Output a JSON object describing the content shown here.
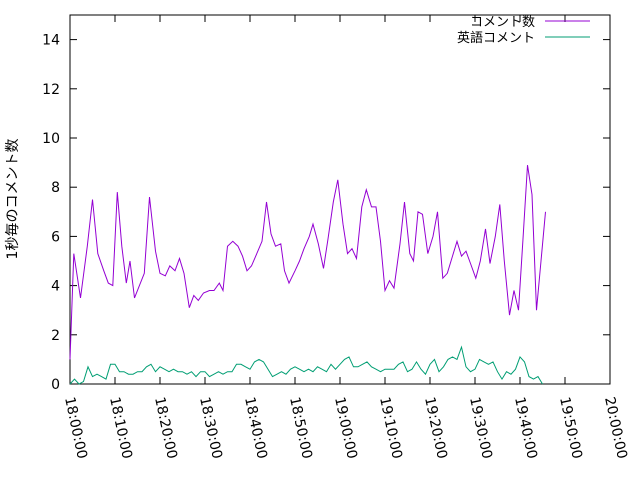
{
  "chart_data": {
    "type": "line",
    "ylabel": "1秒毎のコメント数",
    "xlabel": "",
    "title": "",
    "legend_position": "top-right",
    "grid": false,
    "x_unit": "time",
    "xlim": [
      "18:00:00",
      "20:00:00"
    ],
    "ylim": [
      0,
      15
    ],
    "x_ticks": [
      "18:00:00",
      "18:10:00",
      "18:20:00",
      "18:30:00",
      "18:40:00",
      "18:50:00",
      "19:00:00",
      "19:10:00",
      "19:20:00",
      "19:30:00",
      "19:40:00",
      "19:50:00",
      "20:00:00"
    ],
    "y_ticks": [
      0,
      2,
      4,
      6,
      8,
      10,
      12,
      14
    ],
    "series": [
      {
        "name": "コメント数",
        "color": "#9400d3",
        "points": [
          [
            "18:00:00",
            1.0
          ],
          [
            "18:00:50",
            5.3
          ],
          [
            "18:02:20",
            3.5
          ],
          [
            "18:03:50",
            5.6
          ],
          [
            "18:05:00",
            7.5
          ],
          [
            "18:06:10",
            5.3
          ],
          [
            "18:07:30",
            4.6
          ],
          [
            "18:08:30",
            4.1
          ],
          [
            "18:09:30",
            4.0
          ],
          [
            "18:10:30",
            7.8
          ],
          [
            "18:11:30",
            5.6
          ],
          [
            "18:12:30",
            4.1
          ],
          [
            "18:13:20",
            5.0
          ],
          [
            "18:14:20",
            3.5
          ],
          [
            "18:16:30",
            4.5
          ],
          [
            "18:17:40",
            7.6
          ],
          [
            "18:19:00",
            5.4
          ],
          [
            "18:20:00",
            4.5
          ],
          [
            "18:21:10",
            4.4
          ],
          [
            "18:22:10",
            4.8
          ],
          [
            "18:23:20",
            4.6
          ],
          [
            "18:24:20",
            5.1
          ],
          [
            "18:25:20",
            4.5
          ],
          [
            "18:26:30",
            3.1
          ],
          [
            "18:27:30",
            3.6
          ],
          [
            "18:28:30",
            3.4
          ],
          [
            "18:29:40",
            3.7
          ],
          [
            "18:31:00",
            3.8
          ],
          [
            "18:32:00",
            3.8
          ],
          [
            "18:33:10",
            4.1
          ],
          [
            "18:34:00",
            3.8
          ],
          [
            "18:35:00",
            5.6
          ],
          [
            "18:36:10",
            5.8
          ],
          [
            "18:37:20",
            5.6
          ],
          [
            "18:38:20",
            5.2
          ],
          [
            "18:39:20",
            4.6
          ],
          [
            "18:40:20",
            4.8
          ],
          [
            "18:41:30",
            5.3
          ],
          [
            "18:42:40",
            5.8
          ],
          [
            "18:43:40",
            7.4
          ],
          [
            "18:44:40",
            6.1
          ],
          [
            "18:45:40",
            5.6
          ],
          [
            "18:46:50",
            5.7
          ],
          [
            "18:47:40",
            4.6
          ],
          [
            "18:48:40",
            4.1
          ],
          [
            "18:50:00",
            4.6
          ],
          [
            "18:51:00",
            5.0
          ],
          [
            "18:52:00",
            5.5
          ],
          [
            "18:53:10",
            6.0
          ],
          [
            "18:54:00",
            6.5
          ],
          [
            "18:55:10",
            5.7
          ],
          [
            "18:56:20",
            4.7
          ],
          [
            "18:57:20",
            5.9
          ],
          [
            "18:58:30",
            7.4
          ],
          [
            "18:59:30",
            8.3
          ],
          [
            "19:00:40",
            6.5
          ],
          [
            "19:01:40",
            5.3
          ],
          [
            "19:02:40",
            5.5
          ],
          [
            "19:03:40",
            5.1
          ],
          [
            "19:04:50",
            7.2
          ],
          [
            "19:05:50",
            7.9
          ],
          [
            "19:07:00",
            7.2
          ],
          [
            "19:08:00",
            7.2
          ],
          [
            "19:09:00",
            5.8
          ],
          [
            "19:10:00",
            3.8
          ],
          [
            "19:11:00",
            4.2
          ],
          [
            "19:12:00",
            3.9
          ],
          [
            "19:13:20",
            5.7
          ],
          [
            "19:14:20",
            7.4
          ],
          [
            "19:15:30",
            5.3
          ],
          [
            "19:16:20",
            5.0
          ],
          [
            "19:17:20",
            7.0
          ],
          [
            "19:18:20",
            6.9
          ],
          [
            "19:19:30",
            5.3
          ],
          [
            "19:20:40",
            6.0
          ],
          [
            "19:21:40",
            7.0
          ],
          [
            "19:22:50",
            4.3
          ],
          [
            "19:23:50",
            4.5
          ],
          [
            "19:25:00",
            5.2
          ],
          [
            "19:26:00",
            5.8
          ],
          [
            "19:27:00",
            5.2
          ],
          [
            "19:28:00",
            5.4
          ],
          [
            "19:29:00",
            4.9
          ],
          [
            "19:30:10",
            4.3
          ],
          [
            "19:31:10",
            5.0
          ],
          [
            "19:32:20",
            6.3
          ],
          [
            "19:33:20",
            4.9
          ],
          [
            "19:34:30",
            6.0
          ],
          [
            "19:35:30",
            7.3
          ],
          [
            "19:36:30",
            5.0
          ],
          [
            "19:37:40",
            2.8
          ],
          [
            "19:38:40",
            3.8
          ],
          [
            "19:39:40",
            3.0
          ],
          [
            "19:40:40",
            5.9
          ],
          [
            "19:41:40",
            8.9
          ],
          [
            "19:42:40",
            7.7
          ],
          [
            "19:43:40",
            3.0
          ],
          [
            "19:44:40",
            5.0
          ],
          [
            "19:45:40",
            7.0
          ]
        ]
      },
      {
        "name": "英語コメント",
        "color": "#009e73",
        "points": [
          [
            "18:00:00",
            0.0
          ],
          [
            "18:01:00",
            0.2
          ],
          [
            "18:02:00",
            0.0
          ],
          [
            "18:03:00",
            0.1
          ],
          [
            "18:04:00",
            0.7
          ],
          [
            "18:05:00",
            0.3
          ],
          [
            "18:06:00",
            0.4
          ],
          [
            "18:07:00",
            0.3
          ],
          [
            "18:08:00",
            0.2
          ],
          [
            "18:09:00",
            0.8
          ],
          [
            "18:10:00",
            0.8
          ],
          [
            "18:11:00",
            0.5
          ],
          [
            "18:12:00",
            0.5
          ],
          [
            "18:13:00",
            0.4
          ],
          [
            "18:14:00",
            0.4
          ],
          [
            "18:15:00",
            0.5
          ],
          [
            "18:16:00",
            0.5
          ],
          [
            "18:17:00",
            0.7
          ],
          [
            "18:18:00",
            0.8
          ],
          [
            "18:19:00",
            0.5
          ],
          [
            "18:20:00",
            0.7
          ],
          [
            "18:21:00",
            0.6
          ],
          [
            "18:22:00",
            0.5
          ],
          [
            "18:23:00",
            0.6
          ],
          [
            "18:24:00",
            0.5
          ],
          [
            "18:25:00",
            0.5
          ],
          [
            "18:26:00",
            0.4
          ],
          [
            "18:27:00",
            0.5
          ],
          [
            "18:28:00",
            0.3
          ],
          [
            "18:29:00",
            0.5
          ],
          [
            "18:30:00",
            0.5
          ],
          [
            "18:31:00",
            0.3
          ],
          [
            "18:32:00",
            0.4
          ],
          [
            "18:33:00",
            0.5
          ],
          [
            "18:34:00",
            0.4
          ],
          [
            "18:35:00",
            0.5
          ],
          [
            "18:36:00",
            0.5
          ],
          [
            "18:37:00",
            0.8
          ],
          [
            "18:38:00",
            0.8
          ],
          [
            "18:39:00",
            0.7
          ],
          [
            "18:40:00",
            0.6
          ],
          [
            "18:41:00",
            0.9
          ],
          [
            "18:42:00",
            1.0
          ],
          [
            "18:43:00",
            0.9
          ],
          [
            "18:44:00",
            0.6
          ],
          [
            "18:45:00",
            0.3
          ],
          [
            "18:46:00",
            0.4
          ],
          [
            "18:47:00",
            0.5
          ],
          [
            "18:48:00",
            0.4
          ],
          [
            "18:49:00",
            0.6
          ],
          [
            "18:50:00",
            0.7
          ],
          [
            "18:51:00",
            0.6
          ],
          [
            "18:52:00",
            0.5
          ],
          [
            "18:53:00",
            0.6
          ],
          [
            "18:54:00",
            0.5
          ],
          [
            "18:55:00",
            0.7
          ],
          [
            "18:56:00",
            0.6
          ],
          [
            "18:57:00",
            0.5
          ],
          [
            "18:58:00",
            0.8
          ],
          [
            "18:59:00",
            0.6
          ],
          [
            "19:00:00",
            0.8
          ],
          [
            "19:01:00",
            1.0
          ],
          [
            "19:02:00",
            1.1
          ],
          [
            "19:03:00",
            0.7
          ],
          [
            "19:04:00",
            0.7
          ],
          [
            "19:05:00",
            0.8
          ],
          [
            "19:06:00",
            0.9
          ],
          [
            "19:07:00",
            0.7
          ],
          [
            "19:08:00",
            0.6
          ],
          [
            "19:09:00",
            0.5
          ],
          [
            "19:10:00",
            0.6
          ],
          [
            "19:11:00",
            0.6
          ],
          [
            "19:12:00",
            0.6
          ],
          [
            "19:13:00",
            0.8
          ],
          [
            "19:14:00",
            0.9
          ],
          [
            "19:15:00",
            0.5
          ],
          [
            "19:16:00",
            0.6
          ],
          [
            "19:17:00",
            0.9
          ],
          [
            "19:18:00",
            0.6
          ],
          [
            "19:19:00",
            0.4
          ],
          [
            "19:20:00",
            0.8
          ],
          [
            "19:21:00",
            1.0
          ],
          [
            "19:22:00",
            0.5
          ],
          [
            "19:23:00",
            0.7
          ],
          [
            "19:24:00",
            1.0
          ],
          [
            "19:25:00",
            1.1
          ],
          [
            "19:26:00",
            1.0
          ],
          [
            "19:27:00",
            1.5
          ],
          [
            "19:28:00",
            0.7
          ],
          [
            "19:29:00",
            0.5
          ],
          [
            "19:30:00",
            0.6
          ],
          [
            "19:31:00",
            1.0
          ],
          [
            "19:32:00",
            0.9
          ],
          [
            "19:33:00",
            0.8
          ],
          [
            "19:34:00",
            0.9
          ],
          [
            "19:35:00",
            0.5
          ],
          [
            "19:36:00",
            0.2
          ],
          [
            "19:37:00",
            0.5
          ],
          [
            "19:38:00",
            0.4
          ],
          [
            "19:39:00",
            0.6
          ],
          [
            "19:40:00",
            1.1
          ],
          [
            "19:41:00",
            0.9
          ],
          [
            "19:42:00",
            0.3
          ],
          [
            "19:43:00",
            0.2
          ],
          [
            "19:44:00",
            0.3
          ],
          [
            "19:45:00",
            0.0
          ]
        ]
      }
    ]
  }
}
